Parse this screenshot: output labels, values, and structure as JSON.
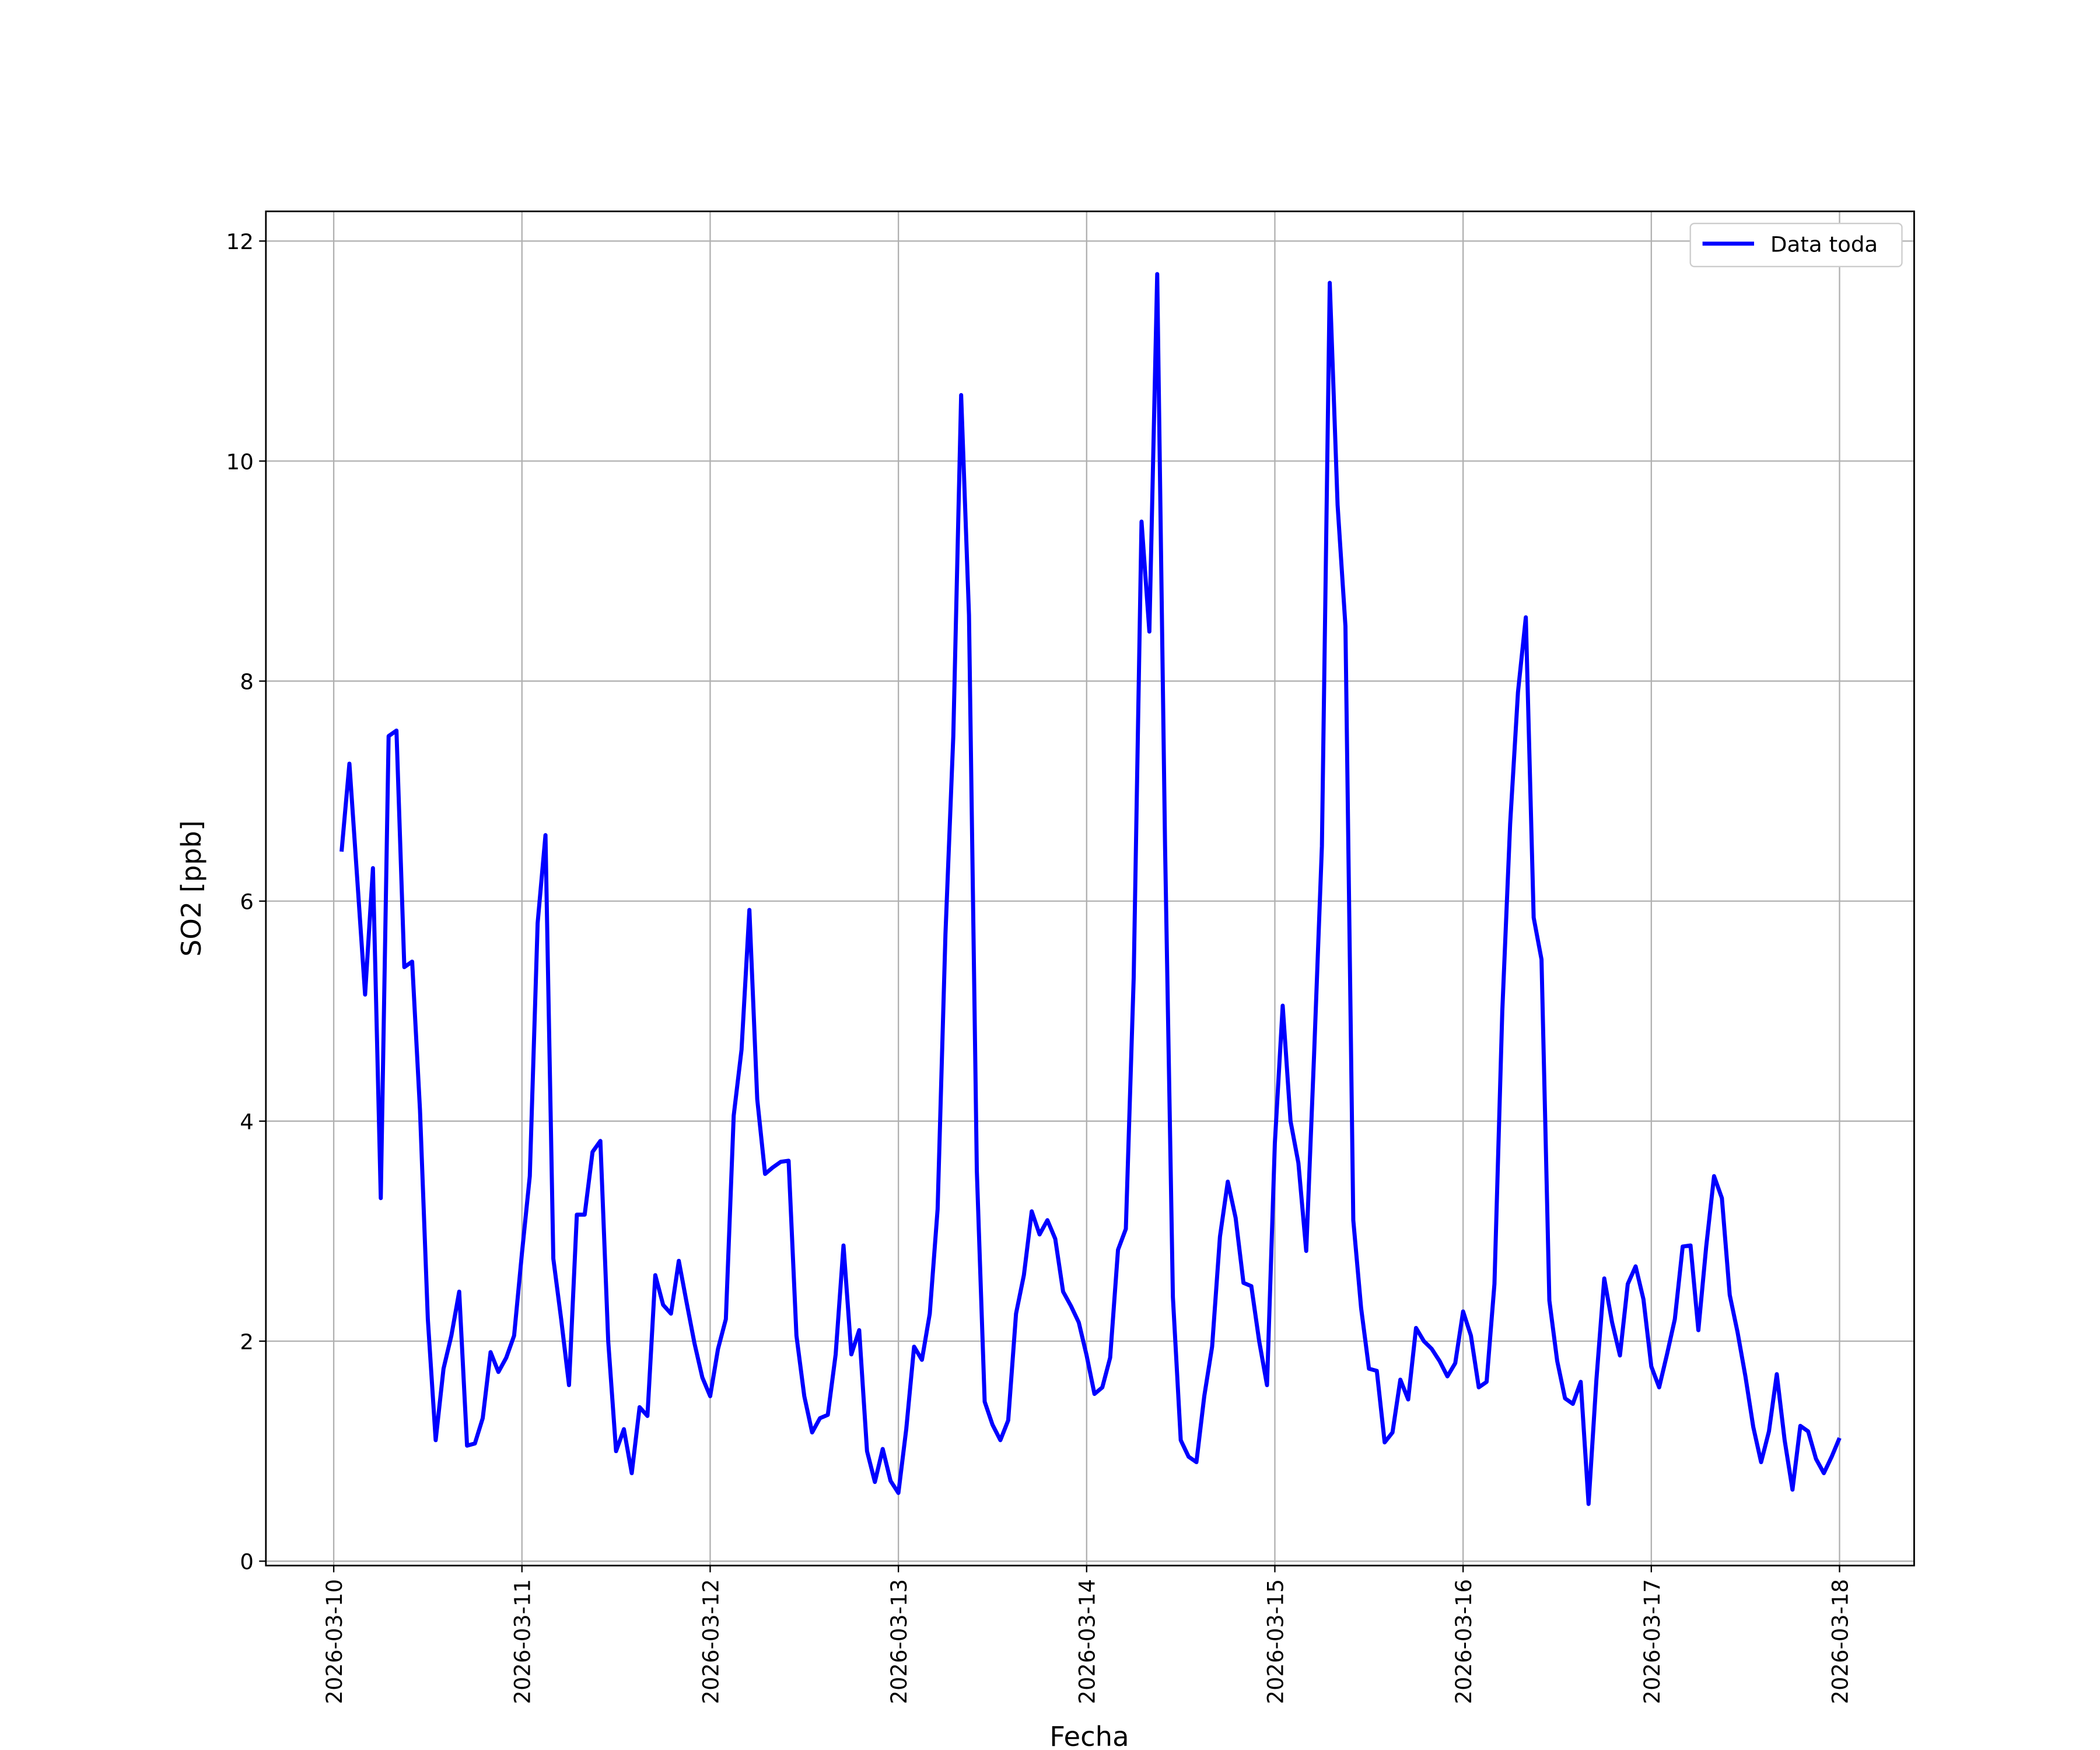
{
  "chart_data": {
    "type": "line",
    "xlabel": "Fecha",
    "ylabel": "SO2 [ppb]",
    "xticks": [
      "2026-03-10",
      "2026-03-11",
      "2026-03-12",
      "2026-03-13",
      "2026-03-14",
      "2026-03-15",
      "2026-03-16",
      "2026-03-17",
      "2026-03-18"
    ],
    "ylim": [
      -0.04,
      12.27
    ],
    "yticks": [
      0,
      2,
      4,
      6,
      8,
      10,
      12
    ],
    "grid": true,
    "legend": "upper right",
    "series": [
      {
        "name": "Data toda",
        "color": "#0000ff",
        "values": [
          6.45,
          7.25,
          6.2,
          5.15,
          6.3,
          3.3,
          7.5,
          7.55,
          5.4,
          5.45,
          4.1,
          2.2,
          1.1,
          1.75,
          2.05,
          2.45,
          1.05,
          1.07,
          1.3,
          1.9,
          1.72,
          1.85,
          2.05,
          2.8,
          3.5,
          5.8,
          6.6,
          2.75,
          2.2,
          1.6,
          3.15,
          3.15,
          3.72,
          3.82,
          2.0,
          1.0,
          1.2,
          0.8,
          1.4,
          1.32,
          2.6,
          2.33,
          2.25,
          2.73,
          2.35,
          1.98,
          1.67,
          1.5,
          1.93,
          2.2,
          4.05,
          4.65,
          5.92,
          4.2,
          3.52,
          3.58,
          3.63,
          3.64,
          2.05,
          1.5,
          1.17,
          1.3,
          1.33,
          1.88,
          2.87,
          1.88,
          2.1,
          1.0,
          0.72,
          1.02,
          0.73,
          0.62,
          1.2,
          1.95,
          1.83,
          2.25,
          3.2,
          5.7,
          7.5,
          10.6,
          8.6,
          3.55,
          1.45,
          1.24,
          1.1,
          1.28,
          2.25,
          2.6,
          3.18,
          2.97,
          3.1,
          2.93,
          2.45,
          2.32,
          2.17,
          1.87,
          1.52,
          1.58,
          1.85,
          2.83,
          3.02,
          5.3,
          9.45,
          8.45,
          11.7,
          6.5,
          2.4,
          1.1,
          0.95,
          0.9,
          1.5,
          1.95,
          2.95,
          3.45,
          3.12,
          2.53,
          2.5,
          2.0,
          1.6,
          3.8,
          5.05,
          4.0,
          3.62,
          2.82,
          4.6,
          6.5,
          11.62,
          9.6,
          8.5,
          3.1,
          2.3,
          1.75,
          1.73,
          1.08,
          1.17,
          1.65,
          1.47,
          2.12,
          2.0,
          1.93,
          1.82,
          1.68,
          1.8,
          2.27,
          2.05,
          1.58,
          1.63,
          2.52,
          5.0,
          6.7,
          7.9,
          8.58,
          5.85,
          5.47,
          2.37,
          1.82,
          1.48,
          1.43,
          1.63,
          0.52,
          1.65,
          2.57,
          2.17,
          1.87,
          2.52,
          2.68,
          2.38,
          1.77,
          1.58,
          1.88,
          2.2,
          2.86,
          2.87,
          2.1,
          2.86,
          3.5,
          3.3,
          2.42,
          2.08,
          1.68,
          1.22,
          0.9,
          1.18,
          1.7,
          1.1,
          0.65,
          1.23,
          1.18,
          0.93,
          0.8,
          0.95,
          1.12
        ]
      }
    ]
  }
}
